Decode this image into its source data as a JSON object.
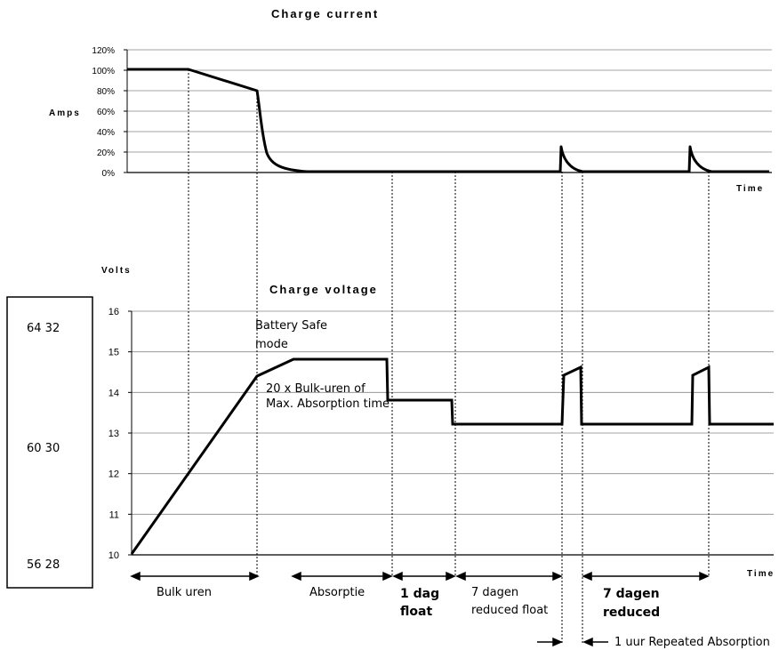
{
  "chart_data": [
    {
      "type": "line",
      "title": "Charge current",
      "ylabel": "Amps",
      "xlabel": "Time",
      "yticks": [
        "0%",
        "20%",
        "40%",
        "60%",
        "80%",
        "100%",
        "120%"
      ],
      "ylim": [
        0,
        120
      ],
      "grid": true
    },
    {
      "type": "line",
      "title": "Charge voltage",
      "ylabel": "Volts",
      "xlabel": "Time",
      "yticks": [
        "10",
        "11",
        "12",
        "13",
        "14",
        "15",
        "16"
      ],
      "ylim": [
        10,
        16
      ],
      "grid": true
    }
  ],
  "side_box": {
    "top": "64 32",
    "mid": "60 30",
    "bottom": "56 28"
  },
  "annotations": {
    "battery_safe_1": "Battery Safe",
    "battery_safe_2": "mode",
    "bulk_uren_1": "20 x Bulk-uren of",
    "bulk_uren_2": "Max. Absorption time"
  },
  "phases": {
    "bulk": "Bulk uren",
    "absorptie": "Absorptie",
    "float_1": "1 dag",
    "float_2": "float",
    "reduced_float_1": "7 dagen",
    "reduced_float_2": "reduced float",
    "reduced_1": "7 dagen",
    "reduced_2": "reduced",
    "repeated": "1 uur Repeated Absorption"
  }
}
